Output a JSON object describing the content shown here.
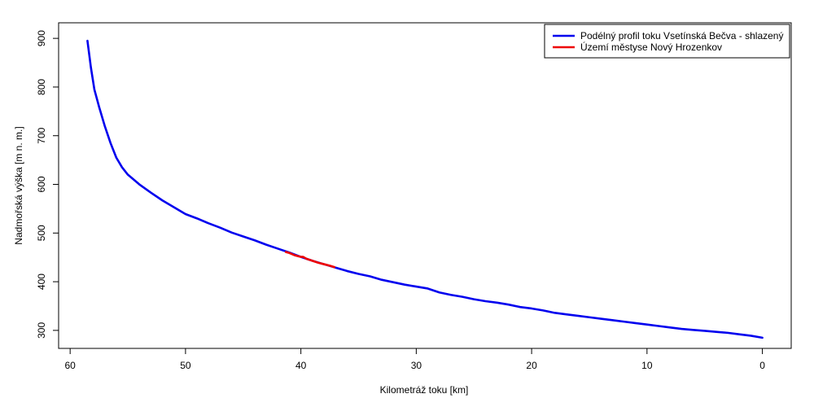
{
  "chart_data": {
    "type": "line",
    "title": "",
    "xlabel": "Kilometráž toku [km]",
    "ylabel": "Nadmořská výška [m n. m.]",
    "xlim": [
      61,
      -2.5
    ],
    "ylim": [
      263,
      932
    ],
    "x_ticks": [
      60,
      50,
      40,
      30,
      20,
      10,
      0
    ],
    "x_tick_labels": [
      "60",
      "50",
      "40",
      "30",
      "20",
      "10",
      "0"
    ],
    "y_ticks": [
      300,
      400,
      500,
      600,
      700,
      800,
      900
    ],
    "y_tick_labels": [
      "300",
      "400",
      "500",
      "600",
      "700",
      "800",
      "900"
    ],
    "x_reversed": true,
    "grid": false,
    "legend_position": "top-right",
    "series": [
      {
        "name": "Podélný profil toku Vsetínská Bečva - shlazený",
        "color": "#0000ee",
        "points": [
          [
            58.5,
            895
          ],
          [
            58.2,
            840
          ],
          [
            57.9,
            795
          ],
          [
            57.5,
            760
          ],
          [
            57.0,
            720
          ],
          [
            56.5,
            685
          ],
          [
            56.0,
            655
          ],
          [
            55.5,
            635
          ],
          [
            55.0,
            620
          ],
          [
            54.0,
            600
          ],
          [
            53.0,
            583
          ],
          [
            52.0,
            567
          ],
          [
            51.0,
            553
          ],
          [
            50.0,
            539
          ],
          [
            49.0,
            530
          ],
          [
            48.0,
            520
          ],
          [
            47.0,
            511
          ],
          [
            46.0,
            501
          ],
          [
            45.0,
            493
          ],
          [
            44.0,
            485
          ],
          [
            43.0,
            476
          ],
          [
            42.0,
            468
          ],
          [
            41.0,
            460
          ],
          [
            40.0,
            451
          ],
          [
            39.0,
            443
          ],
          [
            38.0,
            436
          ],
          [
            37.0,
            429
          ],
          [
            36.0,
            422
          ],
          [
            35.0,
            416
          ],
          [
            34.0,
            411
          ],
          [
            33.0,
            404
          ],
          [
            32.0,
            399
          ],
          [
            31.0,
            394
          ],
          [
            30.0,
            390
          ],
          [
            29.0,
            386
          ],
          [
            28.0,
            378
          ],
          [
            27.0,
            373
          ],
          [
            26.0,
            369
          ],
          [
            25.0,
            364
          ],
          [
            24.0,
            360
          ],
          [
            23.0,
            357
          ],
          [
            22.0,
            353
          ],
          [
            21.0,
            348
          ],
          [
            20.0,
            345
          ],
          [
            19.0,
            341
          ],
          [
            18.0,
            336
          ],
          [
            17.0,
            333
          ],
          [
            16.0,
            330
          ],
          [
            15.0,
            327
          ],
          [
            14.0,
            324
          ],
          [
            13.0,
            321
          ],
          [
            12.0,
            318
          ],
          [
            11.0,
            315
          ],
          [
            10.0,
            312
          ],
          [
            9.0,
            309
          ],
          [
            8.0,
            306
          ],
          [
            7.0,
            303
          ],
          [
            6.0,
            301
          ],
          [
            5.0,
            299
          ],
          [
            4.0,
            297
          ],
          [
            3.0,
            295
          ],
          [
            2.0,
            292
          ],
          [
            1.0,
            289
          ],
          [
            0.0,
            285
          ]
        ]
      },
      {
        "name": "Území městyse Nový Hrozenkov",
        "color": "#ee0000",
        "points": [
          [
            41.3,
            461
          ],
          [
            41.0,
            459
          ],
          [
            40.5,
            454
          ],
          [
            40.0,
            451
          ],
          [
            39.8,
            451
          ],
          [
            39.5,
            447
          ],
          [
            39.0,
            443
          ],
          [
            38.5,
            439
          ],
          [
            38.0,
            436
          ],
          [
            37.5,
            433
          ],
          [
            37.1,
            430
          ]
        ]
      }
    ]
  }
}
